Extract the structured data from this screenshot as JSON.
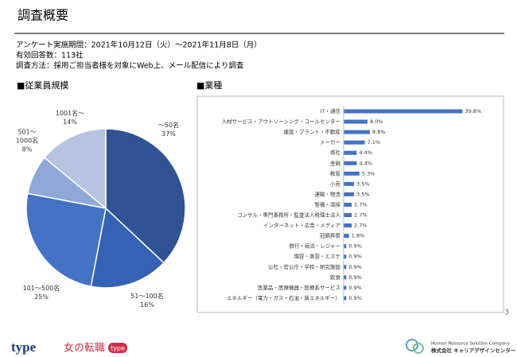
{
  "header": {
    "title": "調査概要",
    "lines": [
      "アンケート実施期間：2021年10月12日（火）～2021年11月8日（月）",
      "有効回答数：113社",
      "調査方法：採用ご担当者様を対象にWeb上、メール配信により調査"
    ]
  },
  "chart_data": [
    {
      "type": "pie",
      "title": "■従業員規模",
      "categories": [
        "～50名",
        "51～100名",
        "101～500名",
        "501～1000名",
        "1001名～"
      ],
      "values": [
        37,
        16,
        25,
        8,
        14
      ],
      "value_labels": [
        "37%",
        "16%",
        "25%",
        "8%",
        "14%"
      ],
      "colors": [
        "#2f5395",
        "#3562b4",
        "#4472c4",
        "#8fa8d9",
        "#b6c3e2"
      ]
    },
    {
      "type": "hbar",
      "title": "■業種",
      "categories": [
        "IT・通信",
        "人材サービス・アウトソーシング・コールセンター",
        "建設・プラント・不動産",
        "メーカー",
        "商社",
        "金融",
        "教育",
        "小売",
        "運輸・物流",
        "警備・清掃",
        "コンサル・専門事務所・監査法人税理士法人",
        "インターネット・広告・メディア",
        "冠婚葬祭",
        "旅行・宿泊・レジャー",
        "理容・美容・エステ",
        "公社・官公庁・学校・研究施設",
        "飲食",
        "医薬品・医療機器・医療系サービス",
        "エネルギー（電力・ガス・石油・新エネルギー）"
      ],
      "values": [
        39.8,
        8.0,
        8.8,
        7.1,
        4.4,
        4.4,
        5.3,
        3.5,
        3.5,
        2.7,
        2.7,
        2.7,
        1.8,
        0.9,
        0.9,
        0.9,
        0.9,
        0.9,
        0.9
      ],
      "value_labels": [
        "39.8%",
        "8.0%",
        "8.8%",
        "7.1%",
        "4.4%",
        "4.4%",
        "5.3%",
        "3.5%",
        "3.5%",
        "2.7%",
        "2.7%",
        "2.7%",
        "1.8%",
        "0.9%",
        "0.9%",
        "0.9%",
        "0.9%",
        "0.9%",
        "0.9%"
      ],
      "color": "#4472c4",
      "xlim": [
        0,
        45
      ]
    }
  ],
  "footer": {
    "logo_type": "type",
    "logo_onna": "女の転職",
    "logo_badge": "type",
    "company_en": "Human Resource Solution Company",
    "company_jp": "株式会社 キャリアデザインセンター"
  },
  "page_number": "3"
}
